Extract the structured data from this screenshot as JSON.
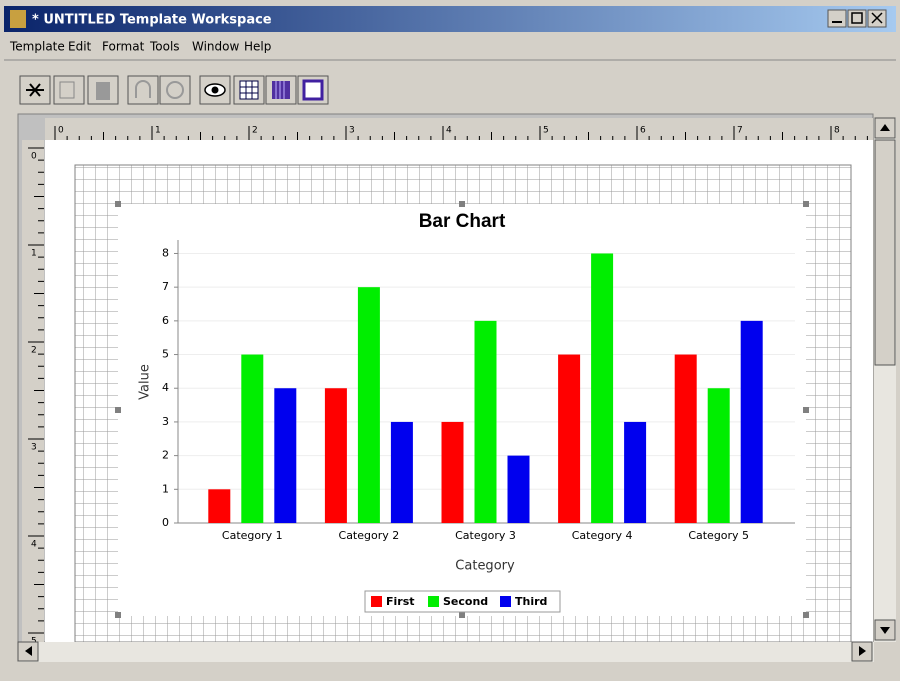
{
  "window": {
    "title": "* UNTITLED Template Workspace"
  },
  "menu": [
    "Template",
    "Edit",
    "Format",
    "Tools",
    "Window",
    "Help"
  ],
  "rulers": {
    "horizontal": [
      0,
      1,
      2,
      3,
      4,
      5,
      6,
      7,
      8
    ],
    "vertical": [
      0,
      1,
      2,
      3,
      4,
      5
    ]
  },
  "chart_data": {
    "type": "bar",
    "title": "Bar Chart",
    "x_label": "Category",
    "y_label": "Value",
    "categories": [
      "Category 1",
      "Category 2",
      "Category 3",
      "Category 4",
      "Category 5"
    ],
    "series": [
      {
        "name": "First",
        "color": "#ff0000",
        "values": [
          1,
          4,
          3,
          5,
          5
        ]
      },
      {
        "name": "Second",
        "color": "#00ee00",
        "values": [
          5,
          7,
          6,
          8,
          4
        ]
      },
      {
        "name": "Third",
        "color": "#0000ee",
        "values": [
          4,
          3,
          2,
          3,
          6
        ]
      }
    ],
    "ylim": [
      0,
      8.4
    ],
    "yticks": [
      0,
      1,
      2,
      3,
      4,
      5,
      6,
      7,
      8
    ],
    "grid": true,
    "legend": "bottom"
  }
}
